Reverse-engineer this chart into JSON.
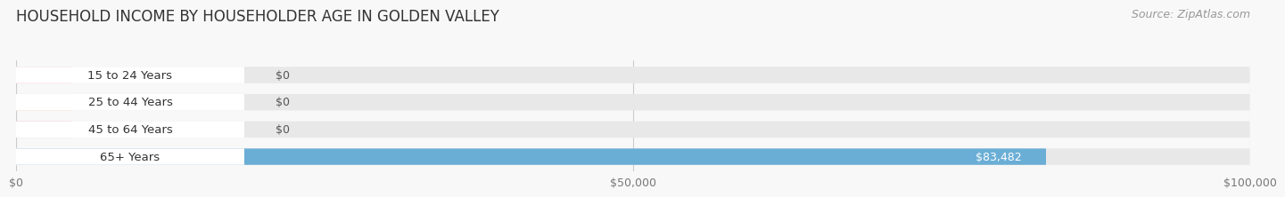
{
  "title": "HOUSEHOLD INCOME BY HOUSEHOLDER AGE IN GOLDEN VALLEY",
  "source": "Source: ZipAtlas.com",
  "categories": [
    "15 to 24 Years",
    "25 to 44 Years",
    "45 to 64 Years",
    "65+ Years"
  ],
  "values": [
    0,
    0,
    0,
    83482
  ],
  "bar_colors": [
    "#f0a0b8",
    "#f5c89a",
    "#f0a0b8",
    "#6aaed6"
  ],
  "bar_bg_color": "#e8e8e8",
  "value_labels": [
    "$0",
    "$0",
    "$0",
    "$83,482"
  ],
  "xlim": [
    0,
    100000
  ],
  "xticks": [
    0,
    50000,
    100000
  ],
  "xtick_labels": [
    "$0",
    "$50,000",
    "$100,000"
  ],
  "background_color": "#f8f8f8",
  "title_fontsize": 12,
  "source_fontsize": 9,
  "bar_height": 0.6,
  "bar_label_color_inside": "#ffffff",
  "bar_label_color_outside": "#555555",
  "label_bg_color": "#ffffff",
  "grid_color": "#cccccc"
}
